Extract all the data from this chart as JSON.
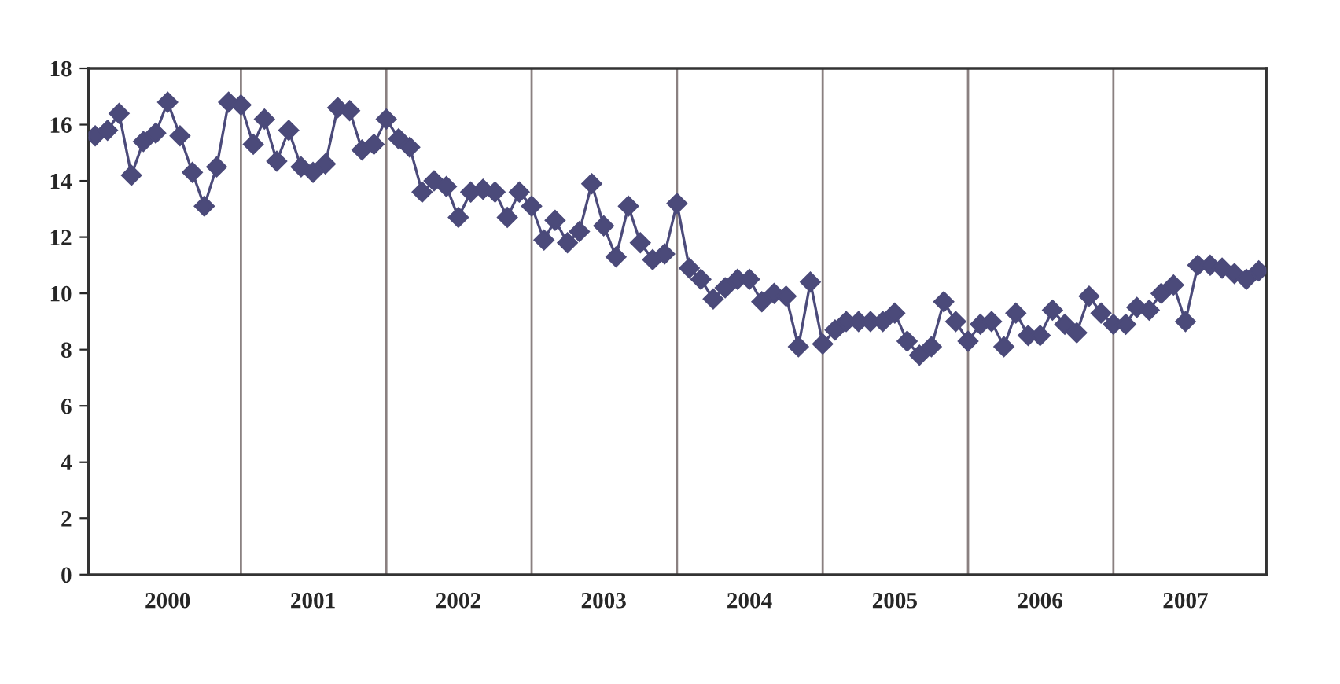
{
  "chart_data": {
    "type": "line",
    "marker": "diamond",
    "line_style": "solid",
    "grid": false,
    "legend": false,
    "x": [
      "2000-01",
      "2000-02",
      "2000-03",
      "2000-04",
      "2000-05",
      "2000-06",
      "2000-07",
      "2000-08",
      "2000-09",
      "2000-10",
      "2000-11",
      "2000-12",
      "2001-01",
      "2001-02",
      "2001-03",
      "2001-04",
      "2001-05",
      "2001-06",
      "2001-07",
      "2001-08",
      "2001-09",
      "2001-10",
      "2001-11",
      "2001-12",
      "2002-01",
      "2002-02",
      "2002-03",
      "2002-04",
      "2002-05",
      "2002-06",
      "2002-07",
      "2002-08",
      "2002-09",
      "2002-10",
      "2002-11",
      "2002-12",
      "2003-01",
      "2003-02",
      "2003-03",
      "2003-04",
      "2003-05",
      "2003-06",
      "2003-07",
      "2003-08",
      "2003-09",
      "2003-10",
      "2003-11",
      "2003-12",
      "2004-01",
      "2004-02",
      "2004-03",
      "2004-04",
      "2004-05",
      "2004-06",
      "2004-07",
      "2004-08",
      "2004-09",
      "2004-10",
      "2004-11",
      "2004-12",
      "2005-01",
      "2005-02",
      "2005-03",
      "2005-04",
      "2005-05",
      "2005-06",
      "2005-07",
      "2005-08",
      "2005-09",
      "2005-10",
      "2005-11",
      "2005-12",
      "2006-01",
      "2006-02",
      "2006-03",
      "2006-04",
      "2006-05",
      "2006-06",
      "2006-07",
      "2006-08",
      "2006-09",
      "2006-10",
      "2006-11",
      "2006-12",
      "2007-01",
      "2007-02",
      "2007-03",
      "2007-04",
      "2007-05",
      "2007-06",
      "2007-07",
      "2007-08",
      "2007-09",
      "2007-10",
      "2007-11",
      "2007-12",
      "2008-01"
    ],
    "series": [
      {
        "color": "#4b4a7a",
        "values": [
          15.6,
          15.8,
          16.4,
          14.2,
          15.4,
          15.7,
          16.8,
          15.6,
          14.3,
          13.1,
          14.5,
          16.8,
          16.7,
          15.3,
          16.2,
          14.7,
          15.8,
          14.5,
          14.3,
          14.6,
          16.6,
          16.5,
          15.1,
          15.3,
          16.2,
          15.5,
          15.2,
          13.6,
          14.0,
          13.8,
          12.7,
          13.6,
          13.7,
          13.6,
          12.7,
          13.6,
          13.1,
          11.9,
          12.6,
          11.8,
          12.2,
          13.9,
          12.4,
          11.3,
          13.1,
          11.8,
          11.2,
          11.4,
          13.2,
          10.9,
          10.5,
          9.8,
          10.2,
          10.5,
          10.5,
          9.7,
          10.0,
          9.9,
          8.1,
          10.4,
          8.2,
          8.7,
          9.0,
          9.0,
          9.0,
          9.0,
          9.3,
          8.3,
          7.8,
          8.1,
          9.7,
          9.0,
          8.3,
          8.9,
          9.0,
          8.1,
          9.3,
          8.5,
          8.5,
          9.4,
          8.9,
          8.6,
          9.9,
          9.3,
          8.9,
          8.9,
          9.5,
          9.4,
          10.0,
          10.3,
          9.0,
          11.0,
          11.0,
          10.9,
          10.7,
          10.5,
          10.8
        ]
      }
    ],
    "xlim": [
      "1999-12-15",
      "2008-01-20"
    ],
    "xticks": [
      {
        "value": "2000-07-01",
        "label": "2000"
      },
      {
        "value": "2001-07-01",
        "label": "2001"
      },
      {
        "value": "2002-07-01",
        "label": "2002"
      },
      {
        "value": "2003-07-01",
        "label": "2003"
      },
      {
        "value": "2004-07-01",
        "label": "2004"
      },
      {
        "value": "2005-07-01",
        "label": "2005"
      },
      {
        "value": "2006-07-01",
        "label": "2006"
      },
      {
        "value": "2007-07-01",
        "label": "2007"
      }
    ],
    "ylim": [
      0,
      18
    ],
    "yticks": [
      0,
      2,
      4,
      6,
      8,
      10,
      12,
      14,
      16,
      18
    ],
    "ref_lines": [
      {
        "axis": "x",
        "value": "2001-01-01",
        "color": "#8a8080"
      },
      {
        "axis": "x",
        "value": "2002-01-01",
        "color": "#8a8080"
      },
      {
        "axis": "x",
        "value": "2003-01-01",
        "color": "#8a8080"
      },
      {
        "axis": "x",
        "value": "2004-01-01",
        "color": "#8a8080"
      },
      {
        "axis": "x",
        "value": "2005-01-01",
        "color": "#8a8080"
      },
      {
        "axis": "x",
        "value": "2006-01-01",
        "color": "#8a8080"
      },
      {
        "axis": "x",
        "value": "2007-01-01",
        "color": "#8a8080"
      }
    ]
  }
}
